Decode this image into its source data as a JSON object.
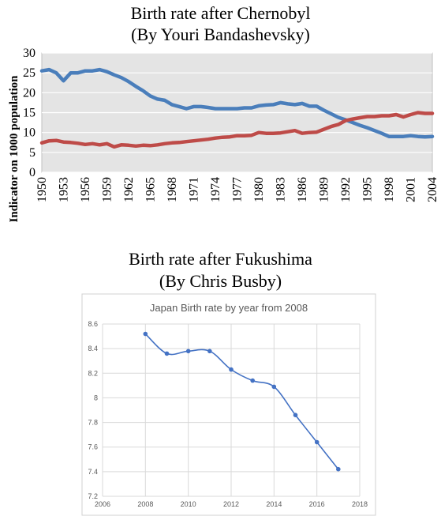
{
  "headings": {
    "chart1_title": "Birth rate after Chernobyl",
    "chart1_subtitle": "(By Youri Bandashevsky)",
    "chart2_title": "Birth rate after Fukushima",
    "chart2_subtitle": "(By Chris Busby)"
  },
  "chart_data": [
    {
      "type": "line",
      "title": "Birth rate after Chernobyl",
      "subtitle": "(By Youri Bandashevsky)",
      "xlabel": "",
      "ylabel": "Indicator on 1000 population",
      "xlim": [
        1950,
        2004
      ],
      "ylim": [
        0,
        30
      ],
      "grid": true,
      "legend": "none",
      "x_ticks": [
        1950,
        1953,
        1956,
        1959,
        1962,
        1965,
        1968,
        1971,
        1974,
        1977,
        1980,
        1983,
        1986,
        1989,
        1992,
        1995,
        1998,
        2001,
        2004
      ],
      "y_ticks": [
        0,
        5,
        10,
        15,
        20,
        25,
        30
      ],
      "x": [
        1950,
        1951,
        1952,
        1953,
        1954,
        1955,
        1956,
        1957,
        1958,
        1959,
        1960,
        1961,
        1962,
        1963,
        1964,
        1965,
        1966,
        1967,
        1968,
        1969,
        1970,
        1971,
        1972,
        1973,
        1974,
        1975,
        1976,
        1977,
        1978,
        1979,
        1980,
        1981,
        1982,
        1983,
        1984,
        1985,
        1986,
        1987,
        1988,
        1989,
        1990,
        1991,
        1992,
        1993,
        1994,
        1995,
        1996,
        1997,
        1998,
        1999,
        2000,
        2001,
        2002,
        2003,
        2004
      ],
      "series": [
        {
          "color": "#4a7ebb",
          "values": [
            25.5,
            25.8,
            25.0,
            23.0,
            25.0,
            25.0,
            25.5,
            25.5,
            25.8,
            25.3,
            24.5,
            23.8,
            22.8,
            21.6,
            20.5,
            19.2,
            18.4,
            18.1,
            17.0,
            16.5,
            16.0,
            16.5,
            16.5,
            16.3,
            16.0,
            16.0,
            16.0,
            16.0,
            16.2,
            16.2,
            16.7,
            16.9,
            17.0,
            17.5,
            17.2,
            17.0,
            17.3,
            16.6,
            16.6,
            15.6,
            14.7,
            13.8,
            13.2,
            12.5,
            11.8,
            11.2,
            10.5,
            9.8,
            9.0,
            9.0,
            9.0,
            9.2,
            9.0,
            8.9,
            9.0
          ]
        },
        {
          "color": "#be4b48",
          "values": [
            7.4,
            7.9,
            8.0,
            7.6,
            7.5,
            7.3,
            7.0,
            7.2,
            6.9,
            7.2,
            6.4,
            6.9,
            6.8,
            6.6,
            6.8,
            6.7,
            6.9,
            7.2,
            7.4,
            7.5,
            7.7,
            7.9,
            8.1,
            8.3,
            8.6,
            8.8,
            8.9,
            9.2,
            9.2,
            9.3,
            10.0,
            9.8,
            9.8,
            9.9,
            10.2,
            10.5,
            9.8,
            10.0,
            10.1,
            10.8,
            11.5,
            12.0,
            13.0,
            13.4,
            13.7,
            14.0,
            14.0,
            14.2,
            14.2,
            14.5,
            13.9,
            14.5,
            15.0,
            14.8,
            14.8
          ]
        }
      ]
    },
    {
      "type": "line",
      "title": "Birth rate after Fukushima",
      "subtitle": "(By Chris Busby)",
      "inner_title": "Japan Birth rate by year from 2008",
      "xlabel": "",
      "ylabel": "",
      "xlim": [
        2006,
        2018
      ],
      "ylim": [
        7.2,
        8.6
      ],
      "grid": true,
      "legend": "none",
      "x_ticks": [
        2006,
        2008,
        2010,
        2012,
        2014,
        2016,
        2018
      ],
      "y_ticks": [
        7.2,
        7.4,
        7.6,
        7.8,
        8,
        8.2,
        8.4,
        8.6
      ],
      "x": [
        2008,
        2009,
        2010,
        2011,
        2012,
        2013,
        2014,
        2015,
        2016,
        2017
      ],
      "series": [
        {
          "color": "#4472c4",
          "values": [
            8.52,
            8.36,
            8.38,
            8.38,
            8.23,
            8.14,
            8.09,
            7.86,
            7.64,
            7.42
          ]
        }
      ]
    }
  ]
}
